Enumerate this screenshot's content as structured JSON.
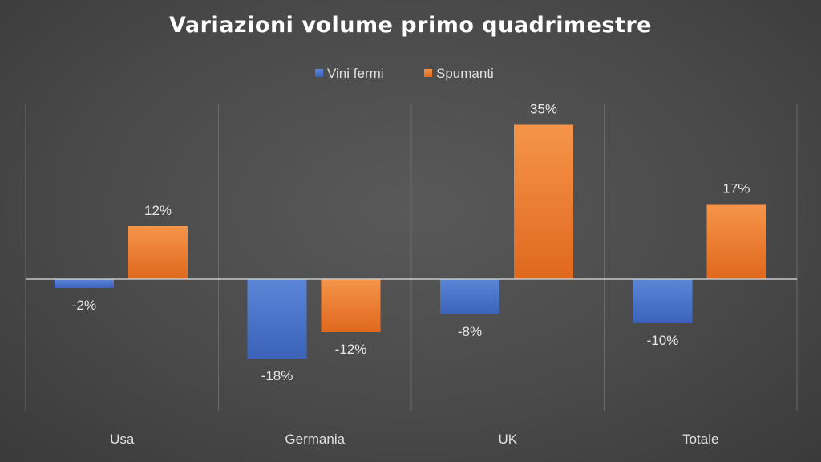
{
  "chart_data": {
    "type": "bar",
    "title": "Variazioni volume primo quadrimestre",
    "categories": [
      "Usa",
      "Germania",
      "UK",
      "Totale"
    ],
    "series": [
      {
        "name": "Vini fermi",
        "values": [
          -2,
          -18,
          -8,
          -10
        ],
        "labels": [
          "-2%",
          "-18%",
          "-8%",
          "-10%"
        ]
      },
      {
        "name": "Spumanti",
        "values": [
          12,
          -12,
          35,
          17
        ],
        "labels": [
          "12%",
          "-12%",
          "35%",
          "17%"
        ]
      }
    ],
    "ylim": [
      -30,
      40
    ],
    "legend": "top",
    "grid": "vertical category separators",
    "colors": {
      "Vini fermi": [
        "#5b86d8",
        "#3a63b9"
      ],
      "Spumanti": [
        "#f5954a",
        "#e0681d"
      ]
    }
  }
}
